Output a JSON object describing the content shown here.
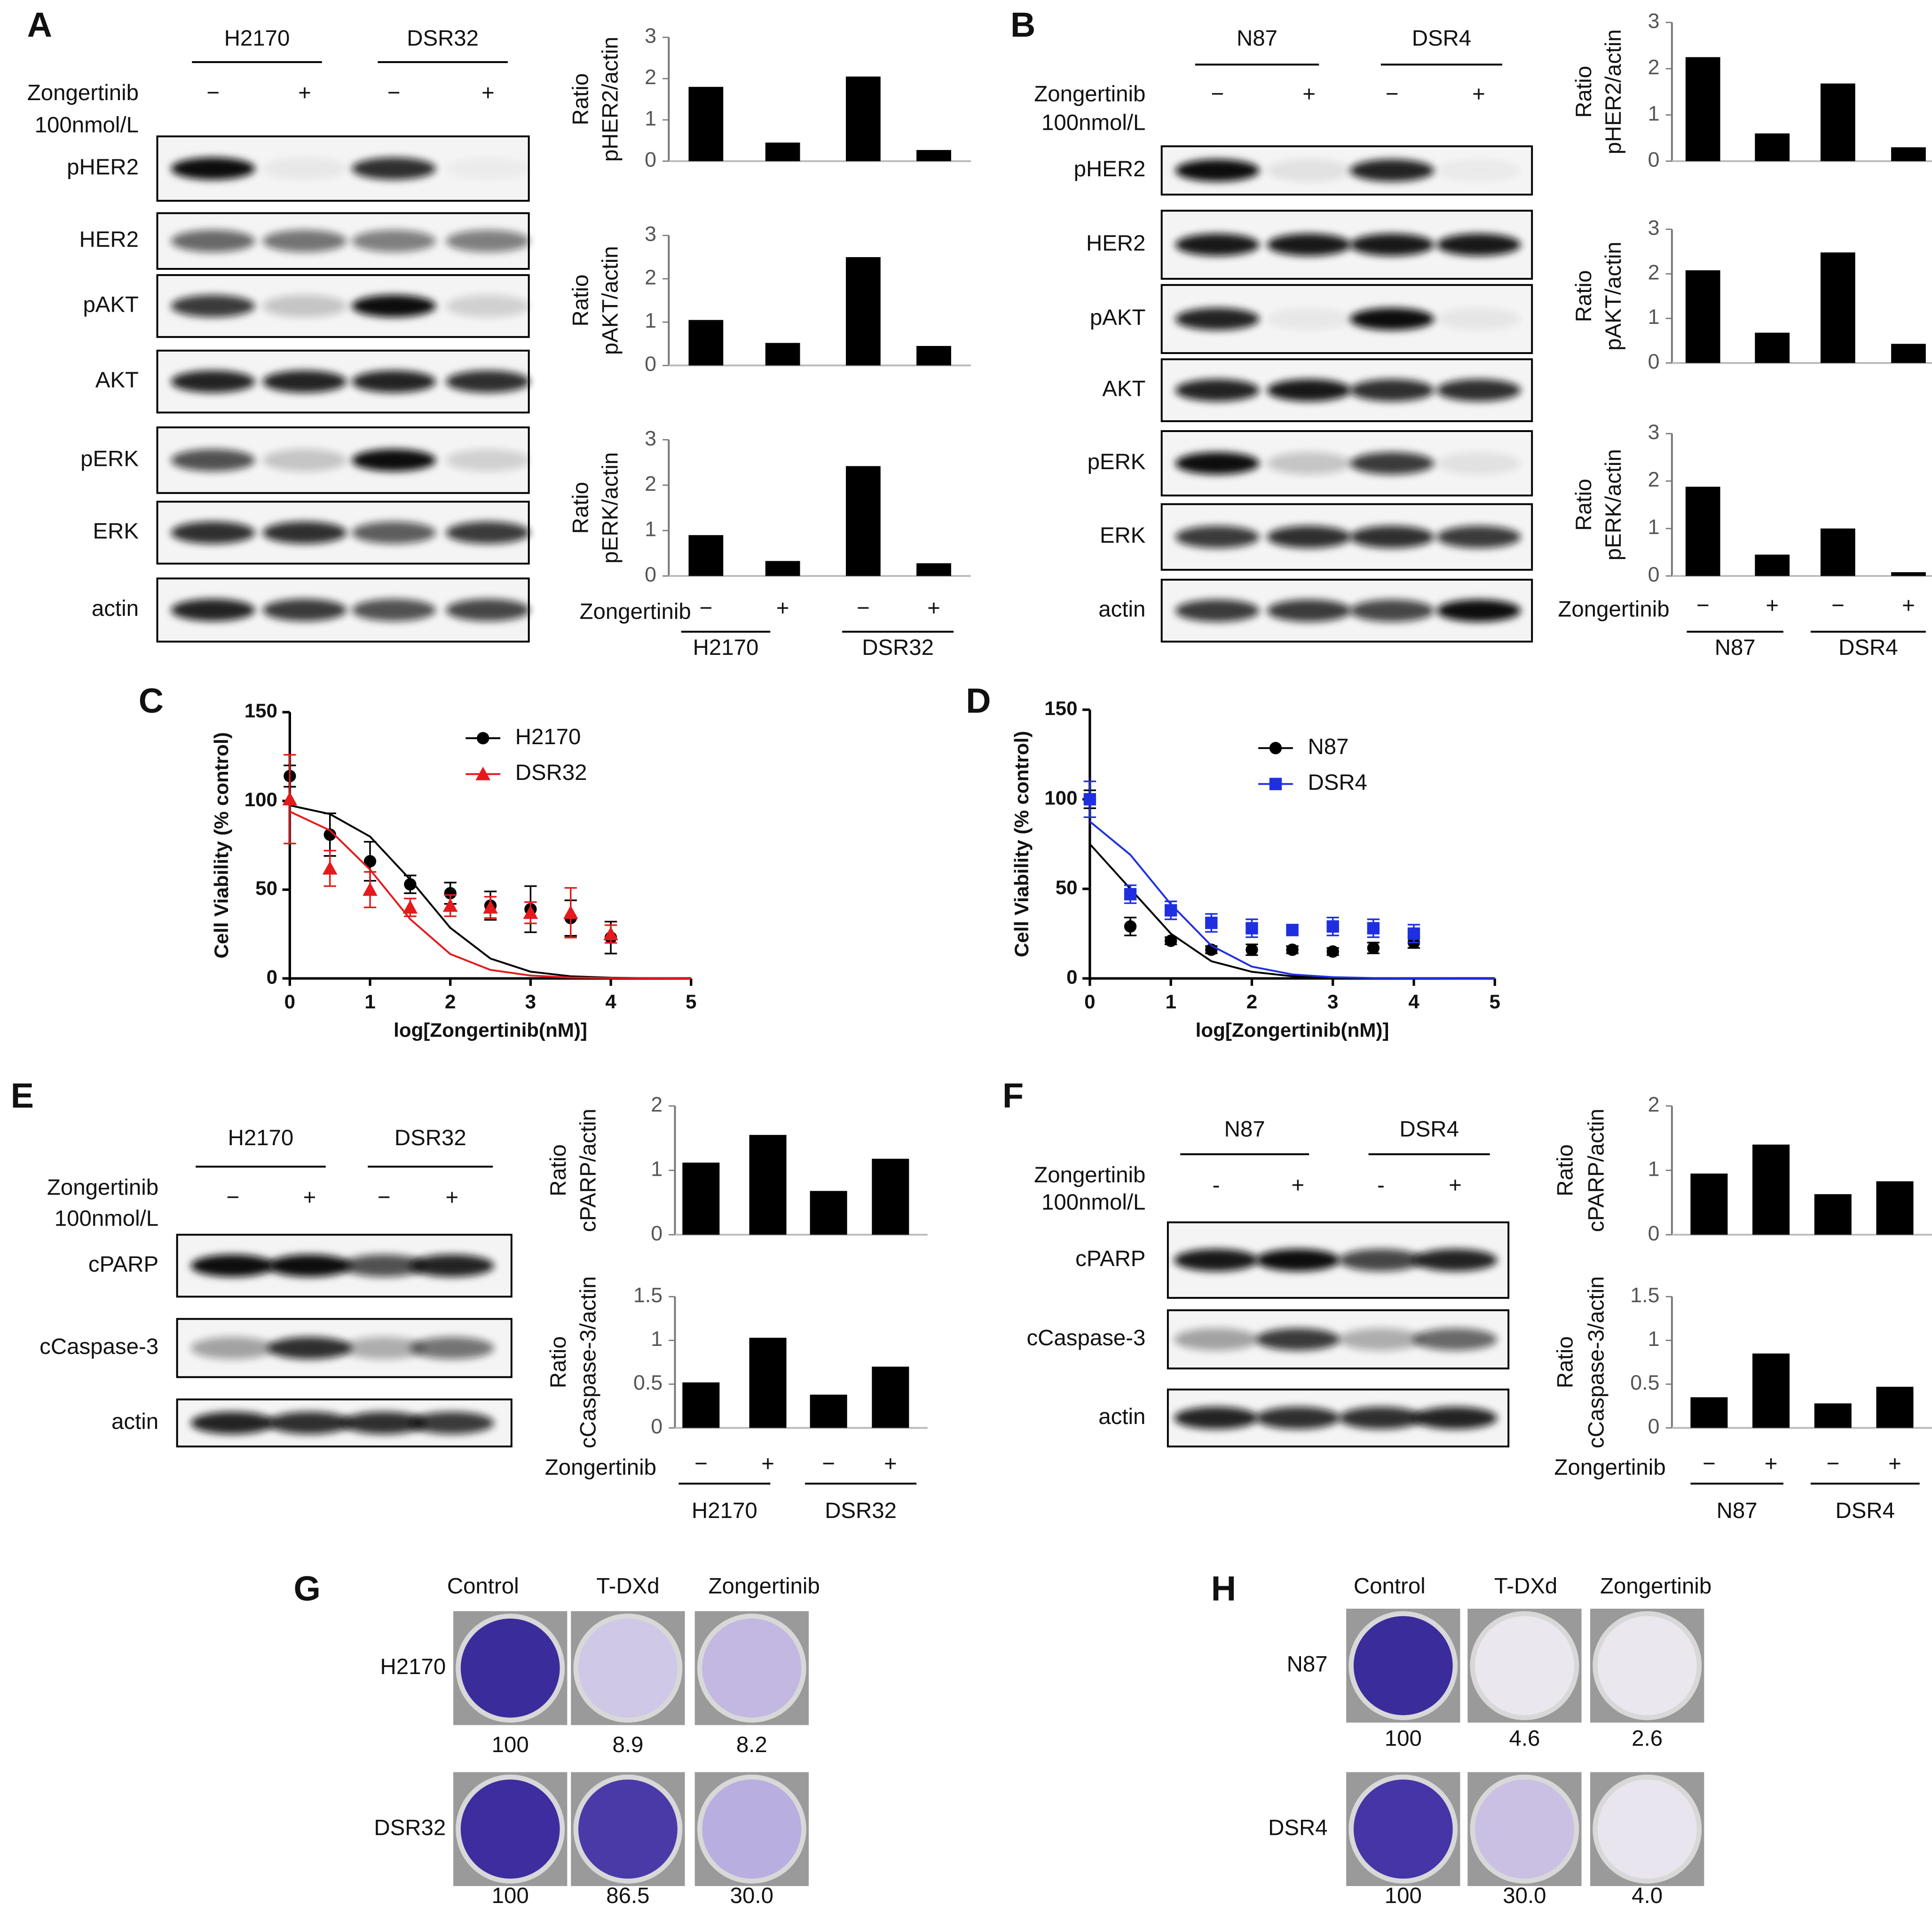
{
  "panel_labels": [
    "A",
    "B",
    "C",
    "D",
    "E",
    "F",
    "G",
    "H"
  ],
  "blots": [
    {
      "groups": [
        "H2170",
        "DSR32"
      ],
      "treatment": [
        "Zongertinib",
        "100nmol/L"
      ],
      "signs": [
        "−",
        "+",
        "−",
        "+"
      ],
      "rows": [
        "pHER2",
        "HER2",
        "pAKT",
        "AKT",
        "pERK",
        "ERK",
        "actin"
      ]
    },
    {
      "groups": [
        "N87",
        "DSR4"
      ],
      "treatment": [
        "Zongertinib",
        "100nmol/L"
      ],
      "signs": [
        "−",
        "+",
        "−",
        "+"
      ],
      "rows": [
        "pHER2",
        "HER2",
        "pAKT",
        "AKT",
        "pERK",
        "ERK",
        "actin"
      ]
    },
    {
      "groups": [
        "H2170",
        "DSR32"
      ],
      "treatment": [
        "Zongertinib",
        "100nmol/L"
      ],
      "signs": [
        "−",
        "+",
        "−",
        "+"
      ],
      "rows": [
        "cPARP",
        "cCaspase-3",
        "actin"
      ]
    },
    {
      "groups": [
        "N87",
        "DSR4"
      ],
      "treatment": [
        "Zongertinib",
        "100nmol/L"
      ],
      "signs": [
        "-",
        "+",
        "-",
        "+"
      ],
      "rows": [
        "cPARP",
        "cCaspase-3",
        "actin"
      ]
    }
  ],
  "chart_data": [
    {
      "type": "bar",
      "ylabel": [
        "Ratio",
        "pHER2/actin"
      ],
      "categories": [
        null,
        null,
        null,
        null
      ],
      "values": [
        1.8,
        0.45,
        2.05,
        0.27
      ],
      "color": "#000000",
      "ylim": [
        0,
        3
      ],
      "yticks": [
        0,
        1,
        2,
        3
      ]
    },
    {
      "type": "bar",
      "ylabel": [
        "Ratio",
        "pAKT/actin"
      ],
      "categories": [
        null,
        null,
        null,
        null
      ],
      "values": [
        1.05,
        0.52,
        2.5,
        0.45
      ],
      "color": "#000000",
      "ylim": [
        0,
        3
      ],
      "yticks": [
        0,
        1,
        2,
        3
      ]
    },
    {
      "type": "bar",
      "ylabel": [
        "Ratio",
        "pERK/actin"
      ],
      "xlabel": "Zongertinib",
      "categories": [
        "−",
        "+",
        "−",
        "+"
      ],
      "groups": [
        "H2170",
        "DSR32"
      ],
      "values": [
        0.9,
        0.33,
        2.42,
        0.28
      ],
      "color": "#000000",
      "ylim": [
        0,
        3
      ],
      "yticks": [
        0,
        1,
        2,
        3
      ]
    },
    {
      "type": "bar",
      "ylabel": [
        "Ratio",
        "pHER2/actin"
      ],
      "categories": [
        null,
        null,
        null,
        null
      ],
      "values": [
        2.25,
        0.6,
        1.68,
        0.3
      ],
      "color": "#000000",
      "ylim": [
        0,
        3
      ],
      "yticks": [
        0,
        1,
        2,
        3
      ]
    },
    {
      "type": "bar",
      "ylabel": [
        "Ratio",
        "pAKT/actin"
      ],
      "categories": [
        null,
        null,
        null,
        null
      ],
      "values": [
        2.08,
        0.68,
        2.48,
        0.43
      ],
      "color": "#000000",
      "ylim": [
        0,
        3
      ],
      "yticks": [
        0,
        1,
        2,
        3
      ]
    },
    {
      "type": "bar",
      "ylabel": [
        "Ratio",
        "pERK/actin"
      ],
      "xlabel": "Zongertinib",
      "categories": [
        "−",
        "+",
        "−",
        "+"
      ],
      "groups": [
        "N87",
        "DSR4"
      ],
      "values": [
        1.88,
        0.45,
        1.0,
        0.08
      ],
      "color": "#000000",
      "ylim": [
        0,
        3
      ],
      "yticks": [
        0,
        1,
        2,
        3
      ]
    },
    {
      "type": "bar",
      "ylabel": [
        "Ratio",
        "cPARP/actin"
      ],
      "categories": [
        null,
        null,
        null,
        null
      ],
      "values": [
        1.12,
        1.55,
        0.68,
        1.18
      ],
      "color": "#000000",
      "ylim": [
        0,
        2
      ],
      "yticks": [
        0,
        1,
        2
      ]
    },
    {
      "type": "bar",
      "ylabel": [
        "Ratio",
        "cCaspase-3/actin"
      ],
      "xlabel": "Zongertinib",
      "categories": [
        "−",
        "+",
        "−",
        "+"
      ],
      "groups": [
        "H2170",
        "DSR32"
      ],
      "values": [
        0.52,
        1.03,
        0.38,
        0.7
      ],
      "color": "#000000",
      "ylim": [
        0,
        1.5
      ],
      "yticks": [
        0,
        0.5,
        1,
        1.5
      ]
    },
    {
      "type": "bar",
      "ylabel": [
        "Ratio",
        "cPARP/actin"
      ],
      "categories": [
        null,
        null,
        null,
        null
      ],
      "values": [
        0.95,
        1.4,
        0.63,
        0.83
      ],
      "color": "#000000",
      "ylim": [
        0,
        2
      ],
      "yticks": [
        0,
        1,
        2
      ]
    },
    {
      "type": "bar",
      "ylabel": [
        "Ratio",
        "cCaspase-3/actin"
      ],
      "xlabel": "Zongertinib",
      "categories": [
        "−",
        "+",
        "−",
        "+"
      ],
      "groups": [
        "N87",
        "DSR4"
      ],
      "values": [
        0.35,
        0.85,
        0.28,
        0.47
      ],
      "color": "#000000",
      "ylim": [
        0,
        1.5
      ],
      "yticks": [
        0,
        0.5,
        1,
        1.5
      ]
    },
    {
      "type": "line",
      "xlabel": "log[Zongertinib(nM)]",
      "ylabel": "Cell Viability (% control)",
      "x": [
        0,
        0.5,
        1,
        1.5,
        2,
        2.5,
        3,
        3.5,
        4
      ],
      "fit_x": [
        0,
        0.5,
        1,
        1.5,
        2,
        2.5,
        3,
        3.5,
        4,
        4.5,
        5
      ],
      "series": [
        {
          "name": "H2170",
          "color": "#000000",
          "marker": "circle",
          "values": [
            114,
            81,
            66,
            53,
            48,
            41,
            39,
            34,
            23
          ],
          "errors": [
            6,
            12,
            11,
            5,
            6,
            8,
            13,
            10,
            9
          ],
          "fit_values": [
            97.5,
            92.6,
            79.9,
            55.7,
            28.5,
            11.2,
            3.8,
            1.2,
            0.4,
            0.1,
            0
          ]
        },
        {
          "name": "DSR32",
          "color": "#e41a1c",
          "marker": "triangle",
          "values": [
            101,
            62,
            50,
            40,
            41,
            40,
            37,
            37,
            25
          ],
          "errors": [
            25,
            10,
            10,
            5,
            6,
            6,
            6,
            14,
            5
          ],
          "fit_values": [
            94,
            83.4,
            61.3,
            33.4,
            13.7,
            4.8,
            1.6,
            0.5,
            0.2,
            0.1,
            0
          ]
        }
      ],
      "xlim": [
        0,
        5
      ],
      "ylim": [
        0,
        150
      ],
      "xticks": [
        0,
        1,
        2,
        3,
        4,
        5
      ],
      "yticks": [
        0,
        50,
        100,
        150
      ]
    },
    {
      "type": "line",
      "xlabel": "log[Zongertinib(nM)]",
      "ylabel": "Cell Viability (% control)",
      "x": [
        0,
        0.5,
        1,
        1.5,
        2,
        2.5,
        3,
        3.5,
        4
      ],
      "fit_x": [
        0,
        0.5,
        1,
        1.5,
        2,
        2.5,
        3,
        3.5,
        4,
        4.5,
        5
      ],
      "series": [
        {
          "name": "N87",
          "color": "#000000",
          "marker": "circle",
          "values": [
            100,
            29,
            21,
            16,
            16,
            16,
            15,
            17,
            20
          ],
          "errors": [
            5,
            5,
            2,
            2,
            3,
            2,
            2,
            3,
            3
          ],
          "fit_values": [
            75,
            50,
            25,
            9.6,
            3.7,
            1.2,
            0.4,
            0.1,
            0,
            0,
            0
          ]
        },
        {
          "name": "DSR4",
          "color": "#1f2fe0",
          "marker": "square",
          "values": [
            100,
            47,
            38,
            31,
            28,
            27,
            29,
            28,
            25
          ],
          "errors": [
            10,
            5,
            5,
            5,
            5,
            3,
            5,
            5,
            5
          ],
          "fit_values": [
            87.6,
            69,
            41.4,
            18.3,
            6.6,
            2.2,
            0.7,
            0.2,
            0.1,
            0,
            0
          ]
        }
      ],
      "xlim": [
        0,
        5
      ],
      "ylim": [
        0,
        150
      ],
      "xticks": [
        0,
        1,
        2,
        3,
        4,
        5
      ],
      "yticks": [
        0,
        50,
        100,
        150
      ]
    }
  ],
  "colony": [
    {
      "columns": [
        "Control",
        "T-DXd",
        "Zongertinib"
      ],
      "rows": [
        {
          "name": "H2170",
          "values": [
            "100",
            "8.9",
            "8.2"
          ]
        },
        {
          "name": "DSR32",
          "values": [
            "100",
            "86.5",
            "30.0"
          ]
        }
      ]
    },
    {
      "columns": [
        "Control",
        "T-DXd",
        "Zongertinib"
      ],
      "rows": [
        {
          "name": "N87",
          "values": [
            "100",
            "4.6",
            "2.6"
          ]
        },
        {
          "name": "DSR4",
          "values": [
            "100",
            "30.0",
            "4.0"
          ]
        }
      ]
    }
  ]
}
